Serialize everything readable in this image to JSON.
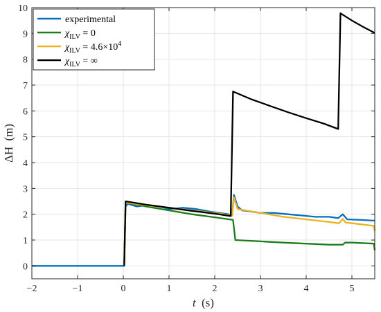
{
  "chart_data": {
    "type": "line",
    "title": "",
    "xlabel": {
      "main": "t",
      "unit": "(s)"
    },
    "ylabel": {
      "main": "ΔH",
      "unit": "(m)"
    },
    "xlim": [
      -2,
      5.5
    ],
    "ylim": [
      -0.5,
      10
    ],
    "xticks": [
      -2,
      -1,
      0,
      1,
      2,
      3,
      4,
      5
    ],
    "yticks": [
      0,
      1,
      2,
      3,
      4,
      5,
      6,
      7,
      8,
      9,
      10
    ],
    "grid": true,
    "legend_position": "top-left",
    "series": [
      {
        "name": "experimental",
        "legend": {
          "base": "experimental",
          "sub": "",
          "rest": "",
          "sup": ""
        },
        "color": "#0072BD",
        "points": [
          [
            -2,
            0
          ],
          [
            -1.5,
            0.0
          ],
          [
            -1,
            0.0
          ],
          [
            -0.5,
            0.0
          ],
          [
            0,
            0.0
          ],
          [
            0.02,
            0.0
          ],
          [
            0.05,
            2.3
          ],
          [
            0.1,
            2.4
          ],
          [
            0.3,
            2.3
          ],
          [
            0.5,
            2.35
          ],
          [
            0.8,
            2.3
          ],
          [
            1.0,
            2.2
          ],
          [
            1.3,
            2.25
          ],
          [
            1.6,
            2.2
          ],
          [
            1.9,
            2.1
          ],
          [
            2.1,
            2.05
          ],
          [
            2.3,
            2.0
          ],
          [
            2.38,
            1.95
          ],
          [
            2.42,
            2.75
          ],
          [
            2.5,
            2.3
          ],
          [
            2.6,
            2.15
          ],
          [
            2.8,
            2.1
          ],
          [
            3.0,
            2.05
          ],
          [
            3.3,
            2.05
          ],
          [
            3.6,
            2.0
          ],
          [
            3.9,
            1.95
          ],
          [
            4.2,
            1.9
          ],
          [
            4.5,
            1.9
          ],
          [
            4.7,
            1.85
          ],
          [
            4.8,
            2.0
          ],
          [
            4.9,
            1.8
          ],
          [
            5.2,
            1.78
          ],
          [
            5.5,
            1.75
          ]
        ]
      },
      {
        "name": "χ_ILV = 0",
        "legend": {
          "base": "χ",
          "sub": "ILV",
          "rest": " = 0",
          "sup": ""
        },
        "color": "#1B7D1B",
        "points": [
          [
            0.02,
            0.0
          ],
          [
            0.05,
            2.45
          ],
          [
            0.5,
            2.3
          ],
          [
            1.0,
            2.15
          ],
          [
            1.5,
            2.0
          ],
          [
            2.0,
            1.88
          ],
          [
            2.4,
            1.78
          ],
          [
            2.45,
            1.0
          ],
          [
            3.0,
            0.95
          ],
          [
            3.5,
            0.9
          ],
          [
            4.0,
            0.86
          ],
          [
            4.5,
            0.82
          ],
          [
            4.8,
            0.82
          ],
          [
            4.85,
            0.9
          ],
          [
            5.0,
            0.9
          ],
          [
            5.48,
            0.86
          ],
          [
            5.5,
            0.6
          ]
        ]
      },
      {
        "name": "χ_ILV = 4.6×10^4",
        "legend": {
          "base": "χ",
          "sub": "ILV",
          "rest": " = 4.6×10",
          "sup": "4"
        },
        "color": "#EDB120",
        "points": [
          [
            0.02,
            0.0
          ],
          [
            0.05,
            2.45
          ],
          [
            0.5,
            2.35
          ],
          [
            1.0,
            2.25
          ],
          [
            1.5,
            2.15
          ],
          [
            2.0,
            2.05
          ],
          [
            2.38,
            1.95
          ],
          [
            2.42,
            2.65
          ],
          [
            2.5,
            2.2
          ],
          [
            3.0,
            2.05
          ],
          [
            3.5,
            1.9
          ],
          [
            4.0,
            1.8
          ],
          [
            4.5,
            1.7
          ],
          [
            4.72,
            1.65
          ],
          [
            4.8,
            1.82
          ],
          [
            4.86,
            1.68
          ],
          [
            5.0,
            1.65
          ],
          [
            5.48,
            1.55
          ],
          [
            5.5,
            1.35
          ]
        ]
      },
      {
        "name": "χ_ILV = ∞",
        "legend": {
          "base": "χ",
          "sub": "ILV",
          "rest": " = ∞",
          "sup": ""
        },
        "color": "#000000",
        "points": [
          [
            0.02,
            0.0
          ],
          [
            0.05,
            2.5
          ],
          [
            0.5,
            2.37
          ],
          [
            1.0,
            2.25
          ],
          [
            1.5,
            2.13
          ],
          [
            2.0,
            2.02
          ],
          [
            2.35,
            1.93
          ],
          [
            2.4,
            6.75
          ],
          [
            2.8,
            6.45
          ],
          [
            3.2,
            6.2
          ],
          [
            3.6,
            5.95
          ],
          [
            4.0,
            5.72
          ],
          [
            4.4,
            5.5
          ],
          [
            4.7,
            5.3
          ],
          [
            4.75,
            9.78
          ],
          [
            5.0,
            9.5
          ],
          [
            5.25,
            9.25
          ],
          [
            5.5,
            9.02
          ]
        ]
      }
    ]
  }
}
